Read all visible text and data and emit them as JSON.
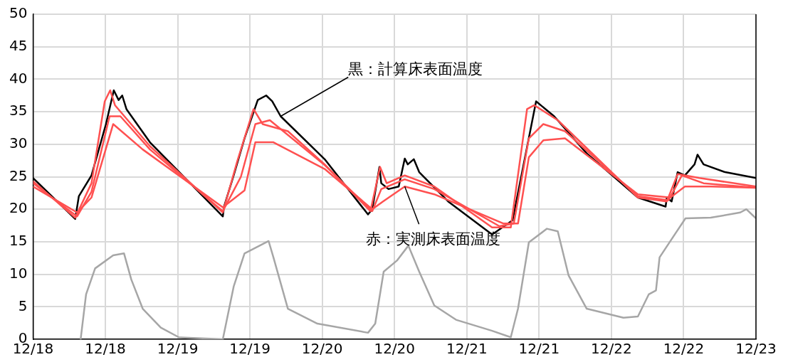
{
  "chart_data": {
    "type": "line",
    "x": [
      "--12-18T00:00",
      "--12-18T07:00",
      "--12-18T07:36",
      "--12-18T09:42",
      "--12-18T12:06",
      "--12-18T13:24",
      "--12-18T14:12",
      "--12-18T14:48",
      "--12-18T15:30",
      "--12-18T19:24",
      "--12-19T07:30",
      "--12-19T07:42",
      "--12-19T09:18",
      "--12-19T11:06",
      "--12-19T13:18",
      "--12-19T14:42",
      "--12-19T15:42",
      "--12-19T17:06",
      "--12-20T00:24",
      "--12-20T07:36",
      "--12-20T08:18",
      "--12-20T09:30",
      "--12-20T09:48",
      "--12-20T11:00",
      "--12-20T12:42",
      "--12-20T13:42",
      "--12-20T14:12",
      "--12-20T15:12",
      "--12-20T16:06",
      "--12-20T20:54",
      "--12-21T04:12",
      "--12-21T07:36",
      "--12-21T11:30",
      "--12-21T14:30",
      "--12-21T19:54",
      "--12-22T04:24",
      "--12-22T09:00",
      "--12-22T09:12",
      "--12-22T10:00",
      "--12-22T11:00",
      "--12-22T12:12",
      "--12-22T13:48",
      "--12-22T14:18",
      "--12-22T15:18",
      "--12-22T18:54",
      "--12-23T00:00"
    ],
    "series": [
      {
        "color": "#ff5050",
        "x": [
          "--12-18T00:00",
          "--12-18T07:00",
          "--12-18T09:42",
          "--12-18T11:54",
          "--12-18T12:48",
          "--12-18T13:36",
          "--12-18T19:24",
          "--12-19T07:30",
          "--12-19T09:54",
          "--12-19T12:36",
          "--12-19T14:06",
          "--12-19T18:18",
          "--12-20T00:24",
          "--12-20T08:00",
          "--12-20T09:36",
          "--12-20T10:42",
          "--12-20T13:42",
          "--12-20T18:36",
          "--12-21T04:12",
          "--12-21T07:18",
          "--12-21T10:00",
          "--12-21T11:12",
          "--12-21T15:06",
          "--12-22T04:24",
          "--12-22T09:12",
          "--12-22T11:00",
          "--12-22T14:36",
          "--12-23T00:00"
        ],
        "values": [
          24.3,
          18.7,
          24.0,
          36.6,
          38.3,
          36.0,
          29.7,
          19.5,
          27.4,
          35.4,
          33.1,
          32.0,
          26.9,
          19.7,
          26.5,
          24.0,
          25.2,
          23.5,
          17.2,
          17.2,
          35.4,
          36.0,
          33.7,
          21.8,
          21.2,
          25.4,
          24.8,
          23.5
        ]
      },
      {
        "color": "#ff5050",
        "x": [
          "--12-18T00:00",
          "--12-18T07:18",
          "--12-18T09:42",
          "--12-18T12:42",
          "--12-18T14:30",
          "--12-18T19:24",
          "--12-19T07:30",
          "--12-19T10:30",
          "--12-19T12:54",
          "--12-19T15:18",
          "--12-20T00:24",
          "--12-20T08:18",
          "--12-20T09:48",
          "--12-20T13:42",
          "--12-20T18:36",
          "--12-21T05:24",
          "--12-21T07:48",
          "--12-21T10:18",
          "--12-21T12:42",
          "--12-21T16:18",
          "--12-22T04:24",
          "--12-22T09:30",
          "--12-22T11:42",
          "--12-22T15:18",
          "--12-23T00:00"
        ],
        "values": [
          24.0,
          18.9,
          22.7,
          34.3,
          34.3,
          29.2,
          19.7,
          25.0,
          33.1,
          33.7,
          26.8,
          19.7,
          23.1,
          24.6,
          23.1,
          17.4,
          17.8,
          30.9,
          33.1,
          32.0,
          22.0,
          21.4,
          25.2,
          24.0,
          23.3
        ]
      },
      {
        "color": "#ff5050",
        "x": [
          "--12-18T00:00",
          "--12-18T07:18",
          "--12-18T09:42",
          "--12-18T13:18",
          "--12-18T18:12",
          "--12-19T07:30",
          "--12-19T11:06",
          "--12-19T12:54",
          "--12-19T15:54",
          "--12-20T00:24",
          "--12-20T08:18",
          "--12-20T10:06",
          "--12-20T13:42",
          "--12-20T18:36",
          "--12-21T06:06",
          "--12-21T08:30",
          "--12-21T10:18",
          "--12-21T12:42",
          "--12-21T16:18",
          "--12-22T04:24",
          "--12-22T09:48",
          "--12-22T12:12",
          "--12-22T16:30",
          "--12-23T00:00"
        ],
        "values": [
          23.5,
          19.5,
          21.8,
          33.1,
          29.2,
          20.3,
          22.9,
          30.3,
          30.3,
          26.2,
          20.0,
          21.2,
          23.5,
          22.3,
          17.8,
          17.8,
          28.0,
          30.6,
          30.9,
          22.3,
          21.8,
          23.5,
          23.5,
          23.3
        ]
      },
      {
        "color": "#000000",
        "values": [
          24.8,
          18.5,
          22.0,
          25.2,
          33.1,
          38.3,
          36.8,
          37.5,
          35.4,
          30.3,
          18.9,
          20.4,
          25.2,
          30.9,
          36.8,
          37.5,
          36.6,
          34.3,
          27.7,
          19.2,
          20.0,
          26.5,
          24.0,
          23.1,
          23.5,
          27.8,
          26.9,
          27.7,
          25.7,
          21.2,
          16.1,
          18.3,
          36.6,
          34.3,
          28.6,
          21.8,
          20.4,
          21.8,
          21.2,
          25.7,
          25.2,
          26.9,
          28.4,
          26.9,
          25.7,
          24.8
        ]
      },
      {
        "color": "#a6a6a6",
        "x": [
          "--12-18T07:54",
          "--12-18T08:48",
          "--12-18T10:18",
          "--12-18T13:18",
          "--12-18T15:06",
          "--12-18T16:18",
          "--12-18T18:12",
          "--12-18T21:12",
          "--12-19T00:12",
          "--12-19T07:30",
          "--12-19T09:18",
          "--12-19T11:06",
          "--12-19T15:06",
          "--12-19T15:54",
          "--12-19T18:18",
          "--12-19T23:12",
          "--12-20T07:36",
          "--12-20T08:48",
          "--12-20T10:12",
          "--12-20T12:24",
          "--12-20T14:18",
          "--12-20T16:06",
          "--12-20T18:36",
          "--12-20T22:12",
          "--12-21T04:12",
          "--12-21T07:18",
          "--12-21T08:30",
          "--12-21T10:18",
          "--12-21T13:18",
          "--12-21T15:06",
          "--12-21T16:54",
          "--12-21T19:54",
          "--12-22T02:00",
          "--12-22T04:24",
          "--12-22T06:12",
          "--12-22T07:24",
          "--12-22T08:00",
          "--12-22T10:30",
          "--12-22T12:18",
          "--12-22T16:30",
          "--12-22T21:24",
          "--12-22T22:24",
          "--12-23T00:00"
        ],
        "values": [
          0,
          6.9,
          10.9,
          12.9,
          13.2,
          9.2,
          4.7,
          1.8,
          0.3,
          0,
          8.1,
          13.2,
          15.1,
          12.6,
          4.7,
          2.4,
          1.0,
          2.4,
          10.4,
          12.1,
          14.4,
          10.4,
          5.2,
          3.0,
          1.3,
          0.3,
          4.7,
          14.9,
          17.0,
          16.6,
          9.8,
          4.7,
          3.3,
          3.5,
          6.9,
          7.5,
          12.6,
          16.1,
          18.6,
          18.7,
          19.5,
          20.0,
          18.6
        ]
      }
    ],
    "xlim": [
      "--12-18T00:00",
      "--12-23T00:00"
    ],
    "xticks": [
      {
        "value": "--12-18T00:00",
        "label": "12/18"
      },
      {
        "value": "--12-18T12:00",
        "label": "12/18"
      },
      {
        "value": "--12-19T00:00",
        "label": "12/19"
      },
      {
        "value": "--12-19T12:00",
        "label": "12/19"
      },
      {
        "value": "--12-20T00:00",
        "label": "12/20"
      },
      {
        "value": "--12-20T12:00",
        "label": "12/20"
      },
      {
        "value": "--12-21T00:00",
        "label": "12/21"
      },
      {
        "value": "--12-21T12:00",
        "label": "12/21"
      },
      {
        "value": "--12-22T00:00",
        "label": "12/22"
      },
      {
        "value": "--12-22T12:00",
        "label": "12/22"
      },
      {
        "value": "--12-23T00:00",
        "label": "12/23"
      }
    ],
    "ylim": [
      0,
      50
    ],
    "yticks": [
      0,
      5,
      10,
      15,
      20,
      25,
      30,
      35,
      40,
      45,
      50
    ],
    "grid": true,
    "legend": false,
    "marker": "none",
    "line_style": "solid",
    "annotations": [
      {
        "text": "黒：計算床表面温度",
        "x": "--12-19T17:06",
        "y": 34.3
      },
      {
        "text": "赤：実測床表面温度",
        "x": "--12-20T13:42",
        "y": 23.5
      }
    ]
  }
}
